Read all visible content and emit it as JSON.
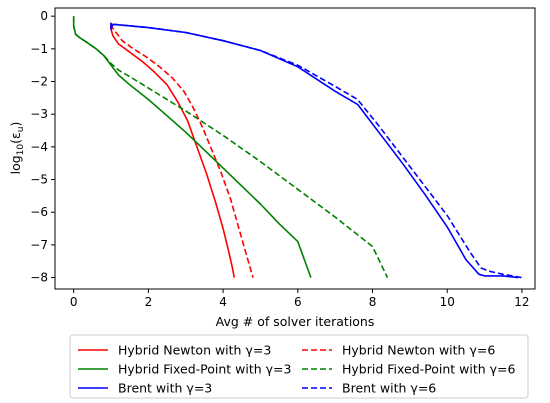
{
  "chart_data": {
    "type": "line",
    "xlabel": "Avg # of solver iterations",
    "ylabel_base": "log",
    "ylabel_sub": "10",
    "ylabel_arg": "(ε",
    "ylabel_arg_sub": "u",
    "ylabel_close": ")",
    "xlim": [
      -0.5,
      12.35
    ],
    "ylim": [
      -8.35,
      0.25
    ],
    "xticks": [
      0,
      2,
      4,
      6,
      8,
      10,
      12
    ],
    "yticks": [
      0,
      -1,
      -2,
      -3,
      -4,
      -5,
      -6,
      -7,
      -8
    ],
    "legend_position": "bottom-center",
    "series": [
      {
        "name": "Hybrid Newton with γ=3",
        "color": "#ff0000",
        "dash": "solid",
        "x": [
          1.0,
          1.0,
          1.05,
          1.2,
          1.5,
          1.85,
          2.15,
          2.5,
          2.8,
          3.05,
          3.3,
          3.55,
          3.8,
          4.0,
          4.15,
          4.25,
          4.3
        ],
        "y": [
          -0.2,
          -0.4,
          -0.6,
          -0.85,
          -1.1,
          -1.4,
          -1.7,
          -2.1,
          -2.65,
          -3.2,
          -4.0,
          -4.8,
          -5.7,
          -6.5,
          -7.2,
          -7.7,
          -8.0
        ]
      },
      {
        "name": "Hybrid Newton with γ=6",
        "color": "#ff0000",
        "dash": "dashed",
        "x": [
          1.0,
          1.0,
          1.1,
          1.3,
          1.6,
          1.95,
          2.3,
          2.65,
          2.95,
          3.2,
          3.45,
          3.7,
          3.95,
          4.2,
          4.4,
          4.55,
          4.7,
          4.8
        ],
        "y": [
          -0.25,
          -0.3,
          -0.45,
          -0.75,
          -1.0,
          -1.25,
          -1.55,
          -1.9,
          -2.3,
          -2.8,
          -3.4,
          -4.1,
          -4.8,
          -5.6,
          -6.4,
          -7.0,
          -7.6,
          -8.0
        ]
      },
      {
        "name": "Hybrid Fixed-Point with γ=3",
        "color": "#008000",
        "dash": "solid",
        "x": [
          0.0,
          0.0,
          0.05,
          0.15,
          0.35,
          0.6,
          0.8,
          1.0,
          1.2,
          1.5,
          2.0,
          2.5,
          3.0,
          3.5,
          4.0,
          4.5,
          5.0,
          5.5,
          6.0,
          6.35
        ],
        "y": [
          0.0,
          -0.3,
          -0.55,
          -0.65,
          -0.8,
          -1.0,
          -1.2,
          -1.5,
          -1.8,
          -2.1,
          -2.55,
          -3.05,
          -3.55,
          -4.1,
          -4.65,
          -5.2,
          -5.75,
          -6.35,
          -6.9,
          -8.0
        ]
      },
      {
        "name": "Hybrid Fixed-Point with γ=6",
        "color": "#008000",
        "dash": "dashed",
        "x": [
          0.0,
          0.0,
          0.05,
          0.15,
          0.35,
          0.6,
          0.8,
          1.0,
          1.2,
          1.5,
          2.0,
          3.0,
          4.0,
          5.0,
          6.0,
          7.0,
          8.0,
          8.4
        ],
        "y": [
          0.0,
          -0.3,
          -0.55,
          -0.65,
          -0.8,
          -1.0,
          -1.2,
          -1.45,
          -1.65,
          -1.85,
          -2.2,
          -2.9,
          -3.65,
          -4.45,
          -5.3,
          -6.15,
          -7.05,
          -8.0
        ]
      },
      {
        "name": "Brent with γ=3",
        "color": "#0000ff",
        "dash": "solid",
        "x": [
          1.0,
          1.0,
          1.05,
          2.0,
          3.0,
          4.0,
          5.0,
          6.0,
          7.0,
          7.6,
          8.2,
          8.8,
          9.4,
          10.0,
          10.5,
          10.85,
          11.0,
          11.5,
          11.9
        ],
        "y": [
          -0.2,
          -0.4,
          -0.25,
          -0.35,
          -0.5,
          -0.75,
          -1.05,
          -1.55,
          -2.3,
          -2.7,
          -3.6,
          -4.5,
          -5.45,
          -6.45,
          -7.45,
          -7.9,
          -7.95,
          -7.95,
          -8.0
        ]
      },
      {
        "name": "Brent with γ=6",
        "color": "#0000ff",
        "dash": "dashed",
        "x": [
          1.05,
          2.0,
          3.0,
          4.0,
          5.0,
          6.0,
          7.0,
          7.6,
          8.2,
          8.8,
          9.4,
          10.0,
          10.6,
          10.9,
          11.1,
          11.5,
          12.0
        ],
        "y": [
          -0.25,
          -0.35,
          -0.5,
          -0.75,
          -1.05,
          -1.5,
          -2.15,
          -2.55,
          -3.4,
          -4.3,
          -5.2,
          -6.1,
          -7.2,
          -7.7,
          -7.8,
          -7.9,
          -8.0
        ]
      }
    ]
  }
}
